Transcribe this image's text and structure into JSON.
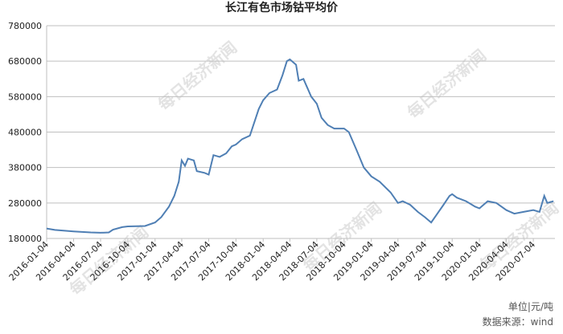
{
  "chart_data": {
    "type": "line",
    "title": "长江有色市场钴平均价",
    "watermark": "每日经济新闻",
    "unit_note": "单位|元/吨",
    "source": "数据来源：wind",
    "xlim": [
      "2016-01-04",
      "2020-09-15"
    ],
    "xticks": [
      "2016-01-04",
      "2016-04-04",
      "2016-07-04",
      "2016-10-04",
      "2017-01-04",
      "2017-04-04",
      "2017-07-04",
      "2017-10-04",
      "2018-01-04",
      "2018-04-04",
      "2018-07-04",
      "2018-10-04",
      "2019-01-04",
      "2019-04-04",
      "2019-07-04",
      "2019-10-04",
      "2020-01-04",
      "2020-04-04",
      "2020-07-04"
    ],
    "ylim": [
      180000,
      780000
    ],
    "yticks": [
      180000,
      280000,
      380000,
      480000,
      580000,
      680000,
      780000
    ],
    "grid": true,
    "series": [
      {
        "color": "#4f7fb4",
        "x": [
          "2016-01-04",
          "2016-02-01",
          "2016-04-04",
          "2016-06-01",
          "2016-07-04",
          "2016-08-01",
          "2016-08-15",
          "2016-09-15",
          "2016-10-04",
          "2016-12-01",
          "2017-01-04",
          "2017-01-25",
          "2017-02-20",
          "2017-03-10",
          "2017-03-25",
          "2017-04-04",
          "2017-04-15",
          "2017-04-25",
          "2017-05-15",
          "2017-05-25",
          "2017-06-20",
          "2017-07-04",
          "2017-07-20",
          "2017-08-10",
          "2017-09-01",
          "2017-09-20",
          "2017-10-04",
          "2017-10-25",
          "2017-11-20",
          "2017-12-20",
          "2018-01-04",
          "2018-01-25",
          "2018-02-20",
          "2018-03-10",
          "2018-03-25",
          "2018-04-04",
          "2018-04-25",
          "2018-05-04",
          "2018-05-20",
          "2018-06-15",
          "2018-07-04",
          "2018-07-20",
          "2018-08-10",
          "2018-09-01",
          "2018-10-04",
          "2018-10-20",
          "2018-11-15",
          "2018-12-10",
          "2019-01-04",
          "2019-02-01",
          "2019-03-10",
          "2019-04-04",
          "2019-04-20",
          "2019-05-15",
          "2019-06-10",
          "2019-07-04",
          "2019-07-25",
          "2019-08-15",
          "2019-09-05",
          "2019-09-25",
          "2019-10-04",
          "2019-10-20",
          "2019-11-20",
          "2019-12-20",
          "2020-01-04",
          "2020-02-01",
          "2020-03-01",
          "2020-04-04",
          "2020-05-01",
          "2020-06-01",
          "2020-07-04",
          "2020-07-25",
          "2020-08-10",
          "2020-08-20",
          "2020-09-10"
        ],
        "values": [
          208000,
          204000,
          200000,
          197000,
          196000,
          197000,
          205000,
          212000,
          214000,
          215000,
          225000,
          240000,
          270000,
          300000,
          340000,
          400000,
          385000,
          405000,
          400000,
          370000,
          365000,
          360000,
          415000,
          410000,
          420000,
          440000,
          445000,
          460000,
          470000,
          545000,
          570000,
          590000,
          600000,
          640000,
          680000,
          685000,
          670000,
          625000,
          630000,
          580000,
          560000,
          520000,
          500000,
          490000,
          490000,
          480000,
          430000,
          380000,
          355000,
          340000,
          310000,
          280000,
          285000,
          275000,
          255000,
          240000,
          225000,
          250000,
          275000,
          300000,
          305000,
          295000,
          285000,
          270000,
          265000,
          285000,
          280000,
          260000,
          250000,
          255000,
          260000,
          255000,
          300000,
          280000,
          285000
        ]
      }
    ]
  }
}
